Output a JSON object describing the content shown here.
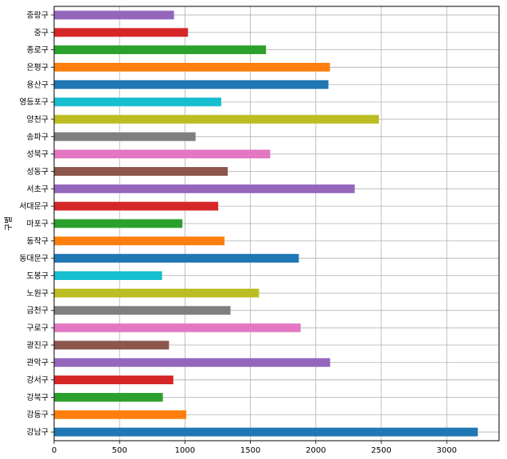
{
  "chart_data": {
    "type": "bar",
    "orientation": "horizontal",
    "ylabel": "구별",
    "xlabel": "",
    "title": "",
    "xlim": [
      0,
      3400
    ],
    "xticks": [
      0,
      500,
      1000,
      1500,
      2000,
      2500,
      3000
    ],
    "grid": true,
    "categories": [
      "강남구",
      "강동구",
      "강북구",
      "강서구",
      "관악구",
      "광진구",
      "구로구",
      "금천구",
      "노원구",
      "도봉구",
      "동대문구",
      "동작구",
      "마포구",
      "서대문구",
      "서초구",
      "성동구",
      "성북구",
      "송파구",
      "양천구",
      "영등포구",
      "용산구",
      "은평구",
      "종로구",
      "중구",
      "중랑구"
    ],
    "values": [
      3238,
      1010,
      831,
      911,
      2109,
      878,
      1884,
      1348,
      1566,
      825,
      1870,
      1302,
      980,
      1254,
      2297,
      1327,
      1651,
      1081,
      2482,
      1277,
      2096,
      2108,
      1619,
      1023,
      916
    ],
    "colors": [
      "#1f77b4",
      "#ff7f0e",
      "#2ca02c",
      "#d62728",
      "#9467bd",
      "#8c564b",
      "#e377c2",
      "#7f7f7f",
      "#bcbd22",
      "#17becf"
    ]
  }
}
